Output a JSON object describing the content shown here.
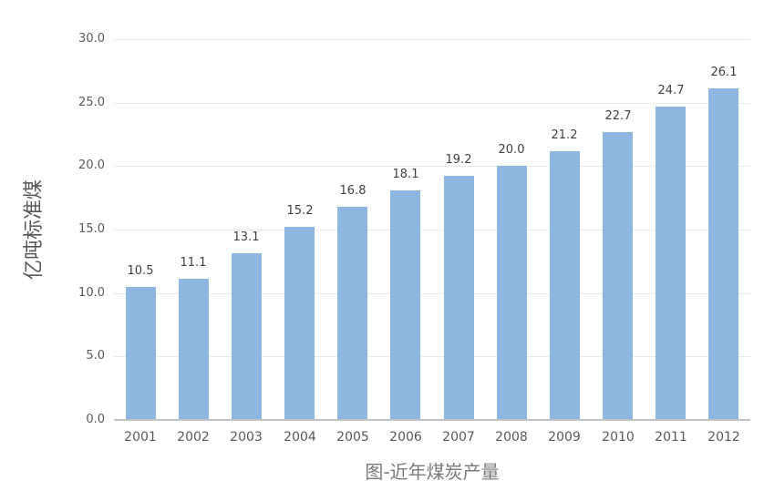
{
  "chart_data": {
    "type": "bar",
    "title": "图-近年煤炭产量",
    "xlabel": "",
    "ylabel": "亿吨标准煤",
    "categories": [
      "2001",
      "2002",
      "2003",
      "2004",
      "2005",
      "2006",
      "2007",
      "2008",
      "2009",
      "2010",
      "2011",
      "2012"
    ],
    "values": [
      10.5,
      11.1,
      13.1,
      15.2,
      16.8,
      18.1,
      19.2,
      20.0,
      21.2,
      22.7,
      24.7,
      26.1
    ],
    "value_labels": [
      "10.5",
      "11.1",
      "13.1",
      "15.2",
      "16.8",
      "18.1",
      "19.2",
      "20.0",
      "21.2",
      "22.7",
      "24.7",
      "26.1"
    ],
    "ylim": [
      0,
      30
    ],
    "ytick_labels": [
      "0.0",
      "5.0",
      "10.0",
      "15.0",
      "20.0",
      "25.0",
      "30.0"
    ],
    "grid": true,
    "legend": false,
    "colors": {
      "bar_fill": "#8DB7E0",
      "gridline": "#E9E9E9",
      "axis_line": "#C2C2C2",
      "tick_text": "#595959",
      "value_text": "#404040",
      "title_text": "#7A7A7A"
    }
  }
}
